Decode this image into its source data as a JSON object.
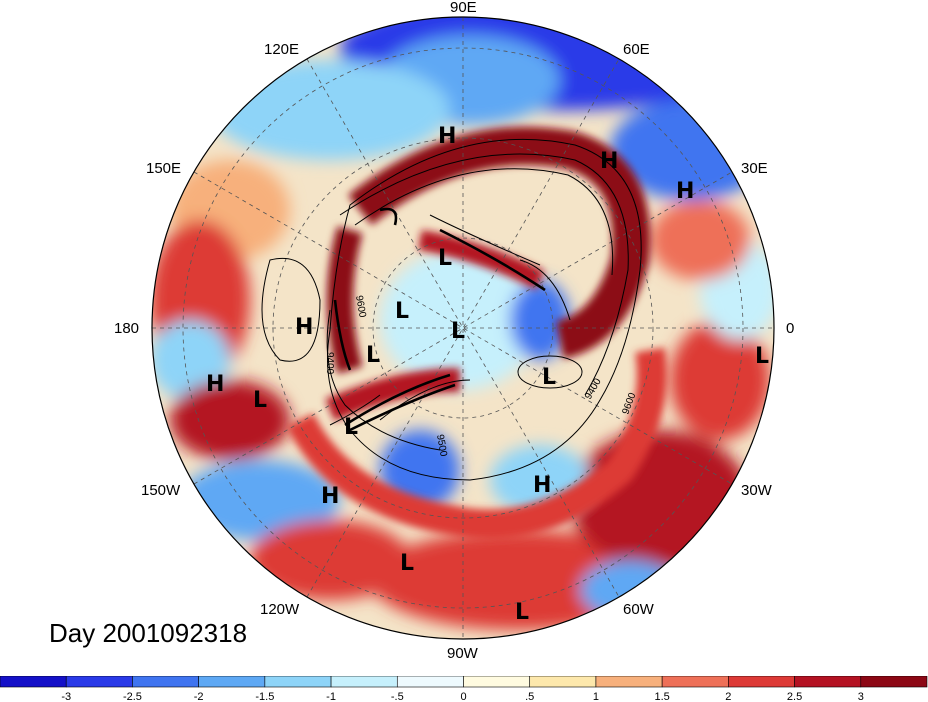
{
  "map": {
    "projection": "polar-stereographic-north",
    "date_label": "Day 2001092318",
    "longitude_labels": [
      "90E",
      "60E",
      "30E",
      "0",
      "30W",
      "60W",
      "90W",
      "120W",
      "150W",
      "180",
      "150E",
      "120E"
    ],
    "pressure_systems": [
      {
        "type": "H",
        "label": "H"
      },
      {
        "type": "H",
        "label": "H"
      },
      {
        "type": "H",
        "label": "H"
      },
      {
        "type": "L",
        "label": "L"
      },
      {
        "type": "L",
        "label": "L"
      },
      {
        "type": "L",
        "label": "L"
      },
      {
        "type": "H",
        "label": "H"
      },
      {
        "type": "L",
        "label": "L"
      },
      {
        "type": "L",
        "label": "L"
      },
      {
        "type": "L",
        "label": "L"
      },
      {
        "type": "H",
        "label": "H"
      },
      {
        "type": "L",
        "label": "L"
      },
      {
        "type": "L",
        "label": "L"
      },
      {
        "type": "H",
        "label": "H"
      },
      {
        "type": "H",
        "label": "H"
      },
      {
        "type": "L",
        "label": "L"
      },
      {
        "type": "L",
        "label": "L"
      }
    ],
    "contour_labels": [
      "9600",
      "9400",
      "9500",
      "9600",
      "9400"
    ]
  },
  "colorbar": {
    "tick_labels": [
      "-3",
      "-2.5",
      "-2",
      "-1.5",
      "-1",
      "-.5",
      "0",
      ".5",
      "1",
      "1.5",
      "2",
      "2.5",
      "3"
    ],
    "colors": [
      "#1410c8",
      "#2a3ae8",
      "#3f74f0",
      "#5ea8f4",
      "#8ed4f8",
      "#c6f0fc",
      "#eefafe",
      "#fffbe0",
      "#fde8ac",
      "#f7b07c",
      "#ee7058",
      "#dd3a36",
      "#b41222",
      "#8c0714"
    ]
  }
}
